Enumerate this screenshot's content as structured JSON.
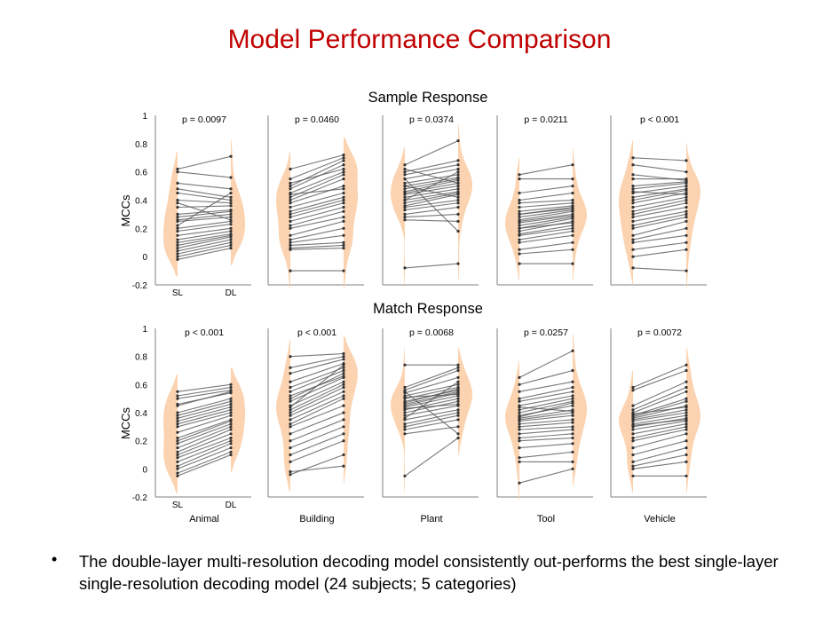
{
  "slide": {
    "title": "Model Performance Comparison",
    "bullet": "The double-layer multi-resolution decoding model consistently out-performs the best single-layer single-resolution decoding model (24 subjects; 5 categories)",
    "bullet_marker": "•"
  },
  "colors": {
    "title": "#c00000",
    "violin": "#fbd3b0",
    "line": "#555555",
    "point": "#333333",
    "axis": "#808080"
  },
  "chart_data": [
    {
      "type": "violin-paired",
      "title": "Sample Response",
      "ylabel": "MCCs",
      "ylim": [
        -0.2,
        1
      ],
      "yticks": [
        "1",
        "0.8",
        "0.6",
        "0.4",
        "0.2",
        "0",
        "-0.2"
      ],
      "xticks": [
        "SL",
        "DL"
      ],
      "categories": [
        "Animal",
        "Building",
        "Plant",
        "Tool",
        "Vehicle"
      ],
      "show_category_labels": false,
      "pvalues": [
        "p = 0.0097",
        "p = 0.0460",
        "p = 0.0374",
        "p = 0.0211",
        "p < 0.001"
      ],
      "series": [
        {
          "category": "Animal",
          "SL": [
            0.62,
            0.6,
            0.52,
            0.48,
            0.45,
            0.4,
            0.35,
            0.3,
            0.26,
            0.25,
            0.2,
            0.18,
            0.15,
            0.12,
            0.1,
            0.08,
            0.06,
            0.04,
            0.02,
            0.0,
            -0.02,
            0.22,
            0.28,
            0.38
          ],
          "DL": [
            0.71,
            0.56,
            0.48,
            0.42,
            0.4,
            0.38,
            0.36,
            0.33,
            0.3,
            0.28,
            0.25,
            0.23,
            0.2,
            0.18,
            0.16,
            0.15,
            0.14,
            0.12,
            0.1,
            0.08,
            0.06,
            0.45,
            0.32,
            0.26
          ]
        },
        {
          "category": "Building",
          "SL": [
            0.62,
            0.55,
            0.5,
            0.48,
            0.45,
            0.42,
            0.4,
            0.38,
            0.35,
            0.32,
            0.3,
            0.28,
            0.25,
            0.22,
            0.2,
            0.15,
            0.12,
            0.1,
            0.08,
            0.06,
            0.05,
            -0.1,
            0.52,
            0.44
          ],
          "DL": [
            0.72,
            0.7,
            0.68,
            0.65,
            0.6,
            0.58,
            0.55,
            0.5,
            0.45,
            0.42,
            0.4,
            0.38,
            0.35,
            0.32,
            0.28,
            0.25,
            0.2,
            0.15,
            0.1,
            0.08,
            0.06,
            -0.1,
            0.62,
            0.48
          ]
        },
        {
          "category": "Plant",
          "SL": [
            0.65,
            0.6,
            0.58,
            0.55,
            0.52,
            0.5,
            0.48,
            0.46,
            0.45,
            0.44,
            0.42,
            0.4,
            0.38,
            0.36,
            0.35,
            0.33,
            0.3,
            0.28,
            0.26,
            0.55,
            0.5,
            0.4,
            0.62,
            -0.08
          ],
          "DL": [
            0.82,
            0.68,
            0.65,
            0.62,
            0.58,
            0.56,
            0.55,
            0.54,
            0.52,
            0.5,
            0.48,
            0.46,
            0.45,
            0.44,
            0.4,
            0.38,
            0.35,
            0.3,
            0.25,
            0.18,
            0.42,
            0.6,
            0.52,
            -0.05
          ]
        },
        {
          "category": "Tool",
          "SL": [
            0.58,
            0.55,
            0.45,
            0.4,
            0.38,
            0.35,
            0.32,
            0.3,
            0.28,
            0.26,
            0.25,
            0.24,
            0.22,
            0.2,
            0.18,
            0.16,
            0.15,
            0.12,
            0.1,
            0.05,
            0.02,
            -0.05,
            0.3,
            0.2
          ],
          "DL": [
            0.65,
            0.55,
            0.5,
            0.45,
            0.4,
            0.38,
            0.36,
            0.35,
            0.33,
            0.32,
            0.3,
            0.29,
            0.28,
            0.27,
            0.25,
            0.22,
            0.2,
            0.18,
            0.15,
            0.1,
            0.05,
            -0.05,
            0.34,
            0.24
          ]
        },
        {
          "category": "Vehicle",
          "SL": [
            0.7,
            0.65,
            0.55,
            0.5,
            0.48,
            0.45,
            0.42,
            0.4,
            0.38,
            0.35,
            0.32,
            0.3,
            0.28,
            0.25,
            0.22,
            0.2,
            0.15,
            0.12,
            0.1,
            0.05,
            0.0,
            -0.08,
            0.58,
            0.46
          ],
          "DL": [
            0.68,
            0.6,
            0.55,
            0.53,
            0.52,
            0.5,
            0.48,
            0.47,
            0.45,
            0.42,
            0.4,
            0.38,
            0.35,
            0.32,
            0.3,
            0.28,
            0.25,
            0.2,
            0.15,
            0.1,
            0.05,
            -0.1,
            0.54,
            0.44
          ]
        }
      ]
    },
    {
      "type": "violin-paired",
      "title": "Match Response",
      "ylabel": "MCCs",
      "ylim": [
        -0.2,
        1
      ],
      "yticks": [
        "1",
        "0.8",
        "0.6",
        "0.4",
        "0.2",
        "0",
        "-0.2"
      ],
      "xticks": [
        "SL",
        "DL"
      ],
      "categories": [
        "Animal",
        "Building",
        "Plant",
        "Tool",
        "Vehicle"
      ],
      "show_category_labels": true,
      "pvalues": [
        "p < 0.001",
        "p < 0.001",
        "p = 0.0068",
        "p = 0.0257",
        "p = 0.0072"
      ],
      "series": [
        {
          "category": "Animal",
          "SL": [
            0.55,
            0.52,
            0.5,
            0.46,
            0.4,
            0.36,
            0.34,
            0.32,
            0.3,
            0.26,
            0.22,
            0.18,
            0.15,
            0.12,
            0.1,
            0.08,
            0.05,
            0.02,
            0.0,
            -0.03,
            -0.05,
            0.45,
            0.2,
            0.38
          ],
          "DL": [
            0.6,
            0.58,
            0.56,
            0.54,
            0.5,
            0.46,
            0.44,
            0.42,
            0.4,
            0.38,
            0.35,
            0.32,
            0.3,
            0.28,
            0.25,
            0.22,
            0.2,
            0.18,
            0.15,
            0.12,
            0.1,
            0.55,
            0.34,
            0.48
          ]
        },
        {
          "category": "Building",
          "SL": [
            0.8,
            0.72,
            0.68,
            0.62,
            0.58,
            0.55,
            0.5,
            0.48,
            0.45,
            0.42,
            0.4,
            0.38,
            0.35,
            0.32,
            0.3,
            0.25,
            0.2,
            0.15,
            0.1,
            0.05,
            -0.02,
            -0.04,
            0.52,
            0.44
          ],
          "DL": [
            0.82,
            0.8,
            0.78,
            0.75,
            0.72,
            0.7,
            0.68,
            0.65,
            0.62,
            0.6,
            0.58,
            0.55,
            0.52,
            0.5,
            0.45,
            0.4,
            0.35,
            0.3,
            0.25,
            0.2,
            0.02,
            0.1,
            0.66,
            0.74
          ]
        },
        {
          "category": "Plant",
          "SL": [
            0.74,
            0.58,
            0.56,
            0.54,
            0.52,
            0.5,
            0.48,
            0.46,
            0.45,
            0.44,
            0.42,
            0.4,
            0.38,
            0.35,
            0.32,
            0.3,
            0.28,
            0.25,
            -0.05,
            0.55,
            0.36,
            0.47,
            0.43,
            0.51
          ],
          "DL": [
            0.74,
            0.72,
            0.7,
            0.65,
            0.6,
            0.58,
            0.56,
            0.55,
            0.54,
            0.52,
            0.5,
            0.48,
            0.45,
            0.42,
            0.4,
            0.38,
            0.35,
            0.3,
            0.22,
            0.25,
            0.62,
            0.57,
            0.46,
            0.53
          ]
        },
        {
          "category": "Tool",
          "SL": [
            0.65,
            0.6,
            0.55,
            0.5,
            0.48,
            0.45,
            0.42,
            0.4,
            0.38,
            0.36,
            0.35,
            0.34,
            0.32,
            0.3,
            0.28,
            0.25,
            0.22,
            0.2,
            0.15,
            0.08,
            0.05,
            -0.1,
            0.44,
            0.37
          ],
          "DL": [
            0.84,
            0.7,
            0.62,
            0.58,
            0.55,
            0.52,
            0.5,
            0.48,
            0.45,
            0.42,
            0.4,
            0.38,
            0.35,
            0.33,
            0.3,
            0.28,
            0.25,
            0.22,
            0.18,
            0.12,
            0.05,
            0.0,
            0.41,
            0.47
          ]
        },
        {
          "category": "Vehicle",
          "SL": [
            0.58,
            0.56,
            0.45,
            0.42,
            0.4,
            0.38,
            0.37,
            0.36,
            0.35,
            0.34,
            0.32,
            0.3,
            0.28,
            0.25,
            0.22,
            0.2,
            0.15,
            0.1,
            0.05,
            0.02,
            0.0,
            -0.05,
            0.39,
            0.31
          ],
          "DL": [
            0.74,
            0.7,
            0.62,
            0.58,
            0.55,
            0.5,
            0.48,
            0.45,
            0.42,
            0.4,
            0.38,
            0.36,
            0.34,
            0.32,
            0.3,
            0.28,
            0.25,
            0.2,
            0.15,
            0.1,
            0.05,
            -0.05,
            0.44,
            0.35
          ]
        }
      ]
    }
  ]
}
